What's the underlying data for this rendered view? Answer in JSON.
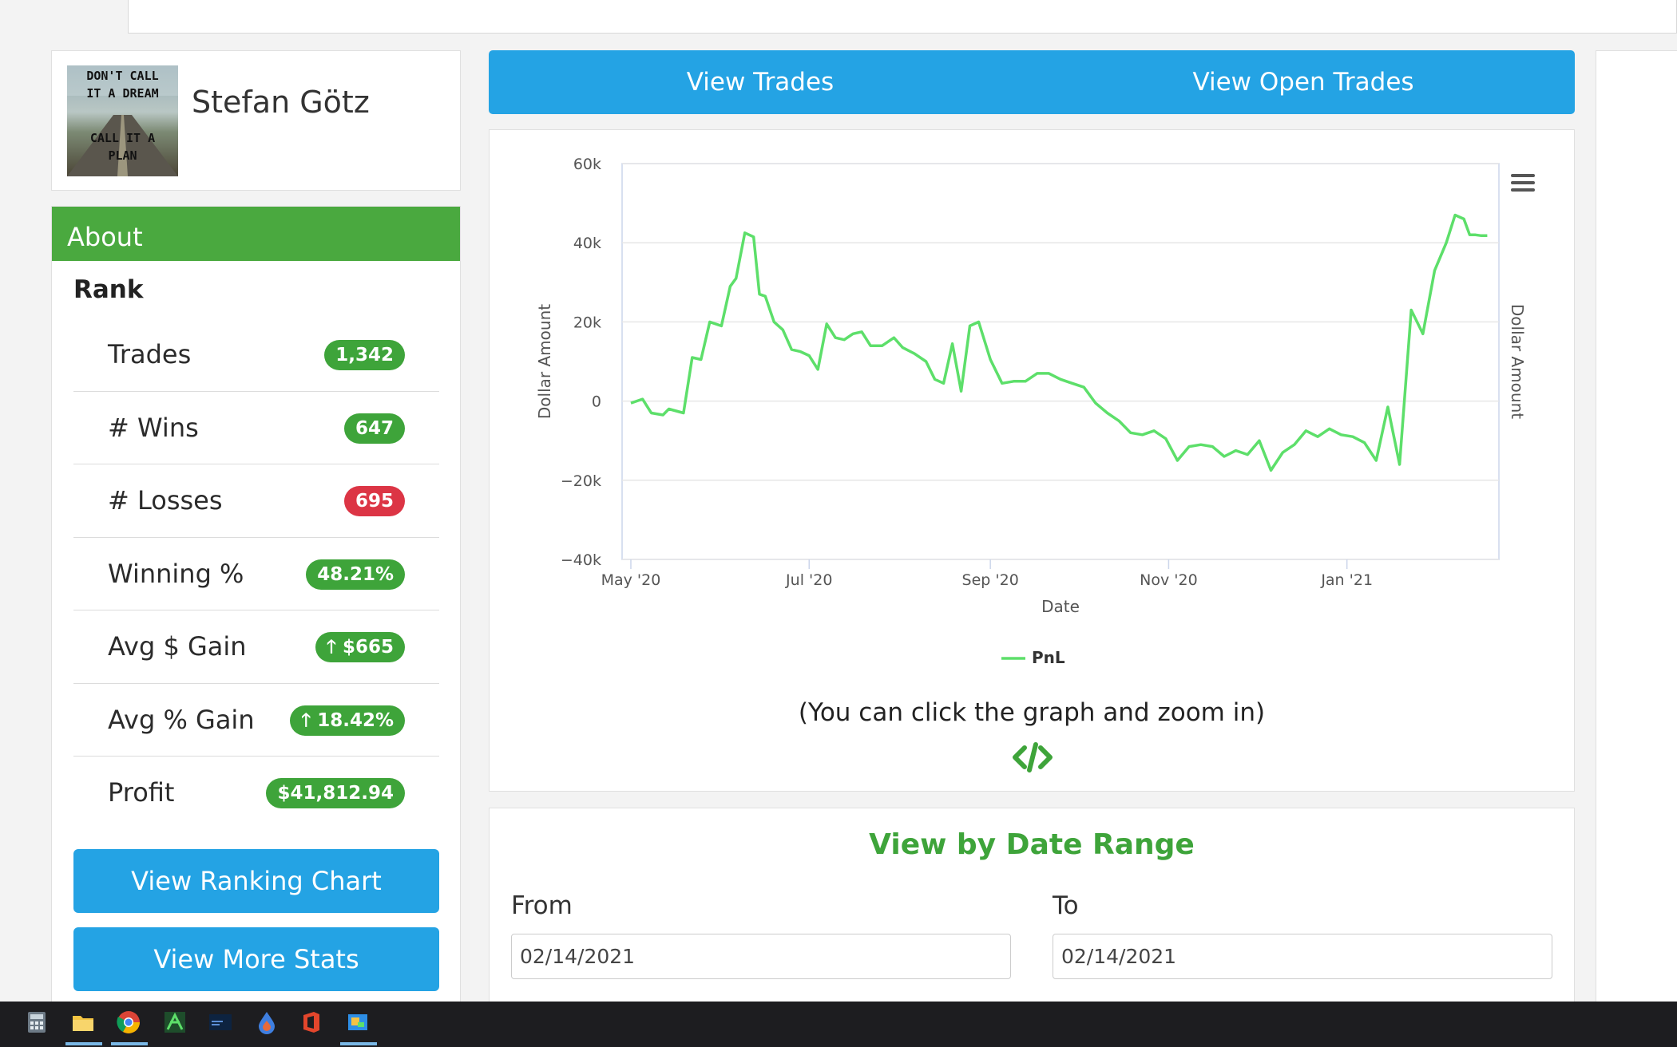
{
  "profile": {
    "name": "Stefan Götz",
    "avatar_text_top": [
      "DON'T CALL",
      "IT A DREAM"
    ],
    "avatar_text_bottom": [
      "CALL IT A",
      "PLAN"
    ]
  },
  "about": {
    "header": "About",
    "rank_label": "Rank",
    "stats": [
      {
        "label": "Trades",
        "value": "1,342",
        "status": "green"
      },
      {
        "label": "# Wins",
        "value": "647",
        "status": "green"
      },
      {
        "label": "# Losses",
        "value": "695",
        "status": "red"
      },
      {
        "label": "Winning %",
        "value": "48.21%",
        "status": "green"
      },
      {
        "label": "Avg $ Gain",
        "value": "🡑 $665",
        "status": "green"
      },
      {
        "label": "Avg % Gain",
        "value": "🡑 18.42%",
        "status": "green"
      },
      {
        "label": "Profit",
        "value": "$41,812.94",
        "status": "green"
      }
    ],
    "buttons": {
      "ranking_chart": "View Ranking Chart",
      "more_stats": "View More Stats"
    }
  },
  "nav": {
    "view_trades": "View Trades",
    "view_open_trades": "View Open Trades"
  },
  "chart_note": "(You can click the graph and zoom in)",
  "date_range": {
    "title": "View by Date Range",
    "from_label": "From",
    "to_label": "To",
    "from_value": "02/14/2021",
    "to_value": "02/14/2021"
  },
  "colors": {
    "accent_blue": "#24a3e4",
    "accent_green": "#4aa93f",
    "badge_red": "#dc3545",
    "line": "#5ddf6a"
  },
  "icons": {
    "chart_menu": "hamburger-menu-icon",
    "embed": "code-embed-icon"
  },
  "chart_data": {
    "type": "line",
    "xlabel": "Date",
    "ylabel": "Dollar Amount",
    "ylabel_right": "Dollar Amount",
    "ylim": [
      -40000,
      60000
    ],
    "yticks": [
      60000,
      40000,
      20000,
      0,
      -20000,
      -40000
    ],
    "ytick_labels": [
      "60k",
      "40k",
      "20k",
      "0",
      "−20k",
      "−40k"
    ],
    "xticks": [
      {
        "date": "2020-05-01",
        "label": "May '20"
      },
      {
        "date": "2020-07-01",
        "label": "Jul '20"
      },
      {
        "date": "2020-09-01",
        "label": "Sep '20"
      },
      {
        "date": "2020-11-01",
        "label": "Nov '20"
      },
      {
        "date": "2021-01-01",
        "label": "Jan '21"
      }
    ],
    "xlim": [
      "2020-04-28",
      "2021-02-22"
    ],
    "legend": "bottom-center",
    "grid": true,
    "series": [
      {
        "name": "PnL",
        "x": [
          "2020-05-01",
          "2020-05-05",
          "2020-05-08",
          "2020-05-12",
          "2020-05-14",
          "2020-05-19",
          "2020-05-22",
          "2020-05-25",
          "2020-05-28",
          "2020-06-01",
          "2020-06-04",
          "2020-06-06",
          "2020-06-09",
          "2020-06-12",
          "2020-06-14",
          "2020-06-16",
          "2020-06-19",
          "2020-06-22",
          "2020-06-25",
          "2020-06-28",
          "2020-07-01",
          "2020-07-04",
          "2020-07-07",
          "2020-07-10",
          "2020-07-13",
          "2020-07-16",
          "2020-07-19",
          "2020-07-22",
          "2020-07-26",
          "2020-07-30",
          "2020-08-02",
          "2020-08-06",
          "2020-08-10",
          "2020-08-13",
          "2020-08-16",
          "2020-08-19",
          "2020-08-22",
          "2020-08-25",
          "2020-08-28",
          "2020-09-01",
          "2020-09-05",
          "2020-09-09",
          "2020-09-13",
          "2020-09-17",
          "2020-09-21",
          "2020-09-25",
          "2020-09-29",
          "2020-10-03",
          "2020-10-07",
          "2020-10-11",
          "2020-10-15",
          "2020-10-19",
          "2020-10-23",
          "2020-10-27",
          "2020-10-31",
          "2020-11-04",
          "2020-11-08",
          "2020-11-12",
          "2020-11-16",
          "2020-11-20",
          "2020-11-24",
          "2020-11-28",
          "2020-12-02",
          "2020-12-06",
          "2020-12-10",
          "2020-12-14",
          "2020-12-18",
          "2020-12-22",
          "2020-12-26",
          "2020-12-30",
          "2021-01-03",
          "2021-01-07",
          "2021-01-11",
          "2021-01-15",
          "2021-01-19",
          "2021-01-23",
          "2021-01-27",
          "2021-01-31",
          "2021-02-04",
          "2021-02-07",
          "2021-02-10",
          "2021-02-12",
          "2021-02-14",
          "2021-02-16",
          "2021-02-18"
        ],
        "y": [
          -500,
          500,
          -3000,
          -3500,
          -2000,
          -3000,
          11000,
          10500,
          20000,
          19000,
          29000,
          31000,
          42500,
          41500,
          27000,
          26500,
          20000,
          18000,
          13000,
          12500,
          11500,
          8000,
          19500,
          16000,
          15500,
          17000,
          17500,
          14000,
          14000,
          16000,
          13500,
          12000,
          10000,
          5500,
          4500,
          14500,
          2500,
          19000,
          20000,
          10500,
          4500,
          5000,
          5000,
          7000,
          7000,
          5500,
          4500,
          3500,
          -500,
          -3000,
          -5000,
          -8000,
          -8500,
          -7500,
          -9500,
          -15000,
          -11500,
          -11000,
          -11500,
          -14000,
          -12500,
          -13500,
          -10000,
          -17500,
          -13000,
          -11000,
          -7500,
          -9000,
          -7000,
          -8500,
          -9000,
          -10500,
          -15000,
          -1500,
          -16000,
          23000,
          17000,
          33000,
          40000,
          47000,
          46000,
          42000,
          42000,
          41800,
          41812.94
        ]
      }
    ]
  }
}
